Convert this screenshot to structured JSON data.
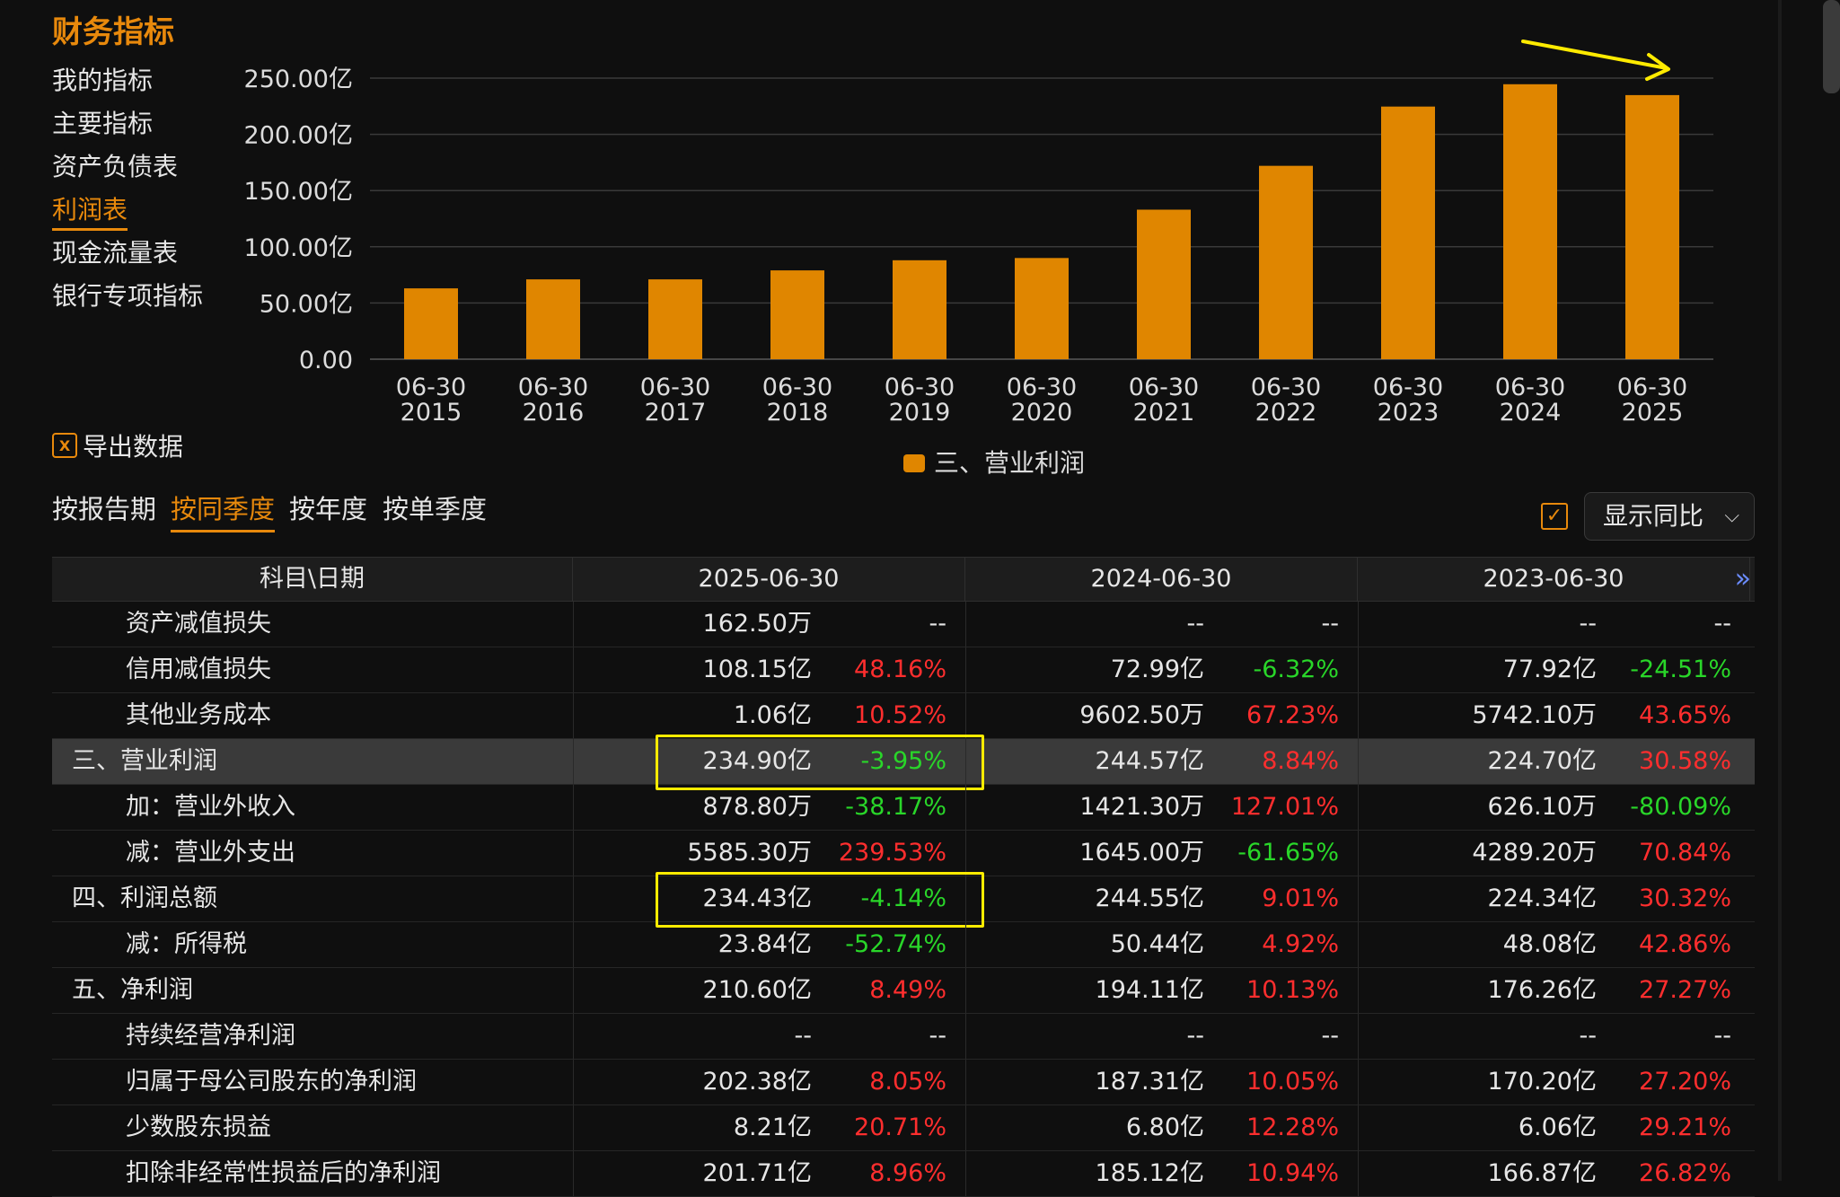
{
  "section_title": "财务指标",
  "nav": [
    {
      "label": "我的指标",
      "active": false
    },
    {
      "label": "主要指标",
      "active": false
    },
    {
      "label": "资产负债表",
      "active": false
    },
    {
      "label": "利润表",
      "active": true
    },
    {
      "label": "现金流量表",
      "active": false
    },
    {
      "label": "银行专项指标",
      "active": false
    }
  ],
  "chart_data": {
    "type": "bar",
    "categories": [
      [
        "06-30",
        "2015"
      ],
      [
        "06-30",
        "2016"
      ],
      [
        "06-30",
        "2017"
      ],
      [
        "06-30",
        "2018"
      ],
      [
        "06-30",
        "2019"
      ],
      [
        "06-30",
        "2020"
      ],
      [
        "06-30",
        "2021"
      ],
      [
        "06-30",
        "2022"
      ],
      [
        "06-30",
        "2023"
      ],
      [
        "06-30",
        "2024"
      ],
      [
        "06-30",
        "2025"
      ]
    ],
    "series": [
      {
        "name": "三、营业利润",
        "values": [
          63,
          71,
          71,
          79,
          88,
          90,
          133,
          172,
          224.7,
          244.57,
          234.9
        ]
      }
    ],
    "ylim": [
      0,
      250
    ],
    "yticks": [
      {
        "value": 250,
        "label": "250.00亿"
      },
      {
        "value": 200,
        "label": "200.00亿"
      },
      {
        "value": 150,
        "label": "150.00亿"
      },
      {
        "value": 100,
        "label": "100.00亿"
      },
      {
        "value": 50,
        "label": "50.00亿"
      },
      {
        "value": 0,
        "label": "0.00"
      }
    ],
    "grid": true,
    "legend_position": "bottom-center",
    "bar_color": "#e08600",
    "title": "",
    "xlabel": "",
    "ylabel": ""
  },
  "export_label": "导出数据",
  "export_icon": "excel-icon",
  "period_tabs": [
    {
      "label": "按报告期",
      "active": false
    },
    {
      "label": "按同季度",
      "active": true
    },
    {
      "label": "按年度",
      "active": false
    },
    {
      "label": "按单季度",
      "active": false
    }
  ],
  "yoy_checked": true,
  "yoy_select": "显示同比",
  "table": {
    "header_first": "科目\\日期",
    "columns": [
      "2025-06-30",
      "2024-06-30",
      "2023-06-30"
    ],
    "more_icon": "double-chevron-right-icon",
    "rows": [
      {
        "label": "资产减值损失",
        "indent": 2,
        "cells": [
          [
            "162.50万",
            "--",
            "flat"
          ],
          [
            "--",
            "--",
            "flat"
          ],
          [
            "--",
            "--",
            "flat"
          ]
        ]
      },
      {
        "label": "信用减值损失",
        "indent": 2,
        "cells": [
          [
            "108.15亿",
            "48.16%",
            "up"
          ],
          [
            "72.99亿",
            "-6.32%",
            "down"
          ],
          [
            "77.92亿",
            "-24.51%",
            "down"
          ]
        ]
      },
      {
        "label": "其他业务成本",
        "indent": 2,
        "cells": [
          [
            "1.06亿",
            "10.52%",
            "up"
          ],
          [
            "9602.50万",
            "67.23%",
            "up"
          ],
          [
            "5742.10万",
            "43.65%",
            "up"
          ]
        ]
      },
      {
        "label": "三、营业利润",
        "indent": 1,
        "highlight": true,
        "boxed": true,
        "cells": [
          [
            "234.90亿",
            "-3.95%",
            "down"
          ],
          [
            "244.57亿",
            "8.84%",
            "up"
          ],
          [
            "224.70亿",
            "30.58%",
            "up"
          ]
        ]
      },
      {
        "label": "加：营业外收入",
        "indent": 2,
        "cells": [
          [
            "878.80万",
            "-38.17%",
            "down"
          ],
          [
            "1421.30万",
            "127.01%",
            "up"
          ],
          [
            "626.10万",
            "-80.09%",
            "down"
          ]
        ]
      },
      {
        "label": "减：营业外支出",
        "indent": 2,
        "cells": [
          [
            "5585.30万",
            "239.53%",
            "up"
          ],
          [
            "1645.00万",
            "-61.65%",
            "down"
          ],
          [
            "4289.20万",
            "70.84%",
            "up"
          ]
        ]
      },
      {
        "label": "四、利润总额",
        "indent": 1,
        "boxed": true,
        "cells": [
          [
            "234.43亿",
            "-4.14%",
            "down"
          ],
          [
            "244.55亿",
            "9.01%",
            "up"
          ],
          [
            "224.34亿",
            "30.32%",
            "up"
          ]
        ]
      },
      {
        "label": "减：所得税",
        "indent": 2,
        "cells": [
          [
            "23.84亿",
            "-52.74%",
            "down"
          ],
          [
            "50.44亿",
            "4.92%",
            "up"
          ],
          [
            "48.08亿",
            "42.86%",
            "up"
          ]
        ]
      },
      {
        "label": "五、净利润",
        "indent": 1,
        "cells": [
          [
            "210.60亿",
            "8.49%",
            "up"
          ],
          [
            "194.11亿",
            "10.13%",
            "up"
          ],
          [
            "176.26亿",
            "27.27%",
            "up"
          ]
        ]
      },
      {
        "label": "持续经营净利润",
        "indent": 2,
        "cells": [
          [
            "--",
            "--",
            "flat"
          ],
          [
            "--",
            "--",
            "flat"
          ],
          [
            "--",
            "--",
            "flat"
          ]
        ]
      },
      {
        "label": "归属于母公司股东的净利润",
        "indent": 2,
        "cells": [
          [
            "202.38亿",
            "8.05%",
            "up"
          ],
          [
            "187.31亿",
            "10.05%",
            "up"
          ],
          [
            "170.20亿",
            "27.20%",
            "up"
          ]
        ]
      },
      {
        "label": "少数股东损益",
        "indent": 2,
        "cells": [
          [
            "8.21亿",
            "20.71%",
            "up"
          ],
          [
            "6.80亿",
            "12.28%",
            "up"
          ],
          [
            "6.06亿",
            "29.21%",
            "up"
          ]
        ]
      },
      {
        "label": "扣除非经常性损益后的净利润",
        "indent": 2,
        "cells": [
          [
            "201.71亿",
            "8.96%",
            "up"
          ],
          [
            "185.12亿",
            "10.94%",
            "up"
          ],
          [
            "166.87亿",
            "26.82%",
            "up"
          ]
        ]
      }
    ]
  },
  "annotation_color": "#ffeb00"
}
